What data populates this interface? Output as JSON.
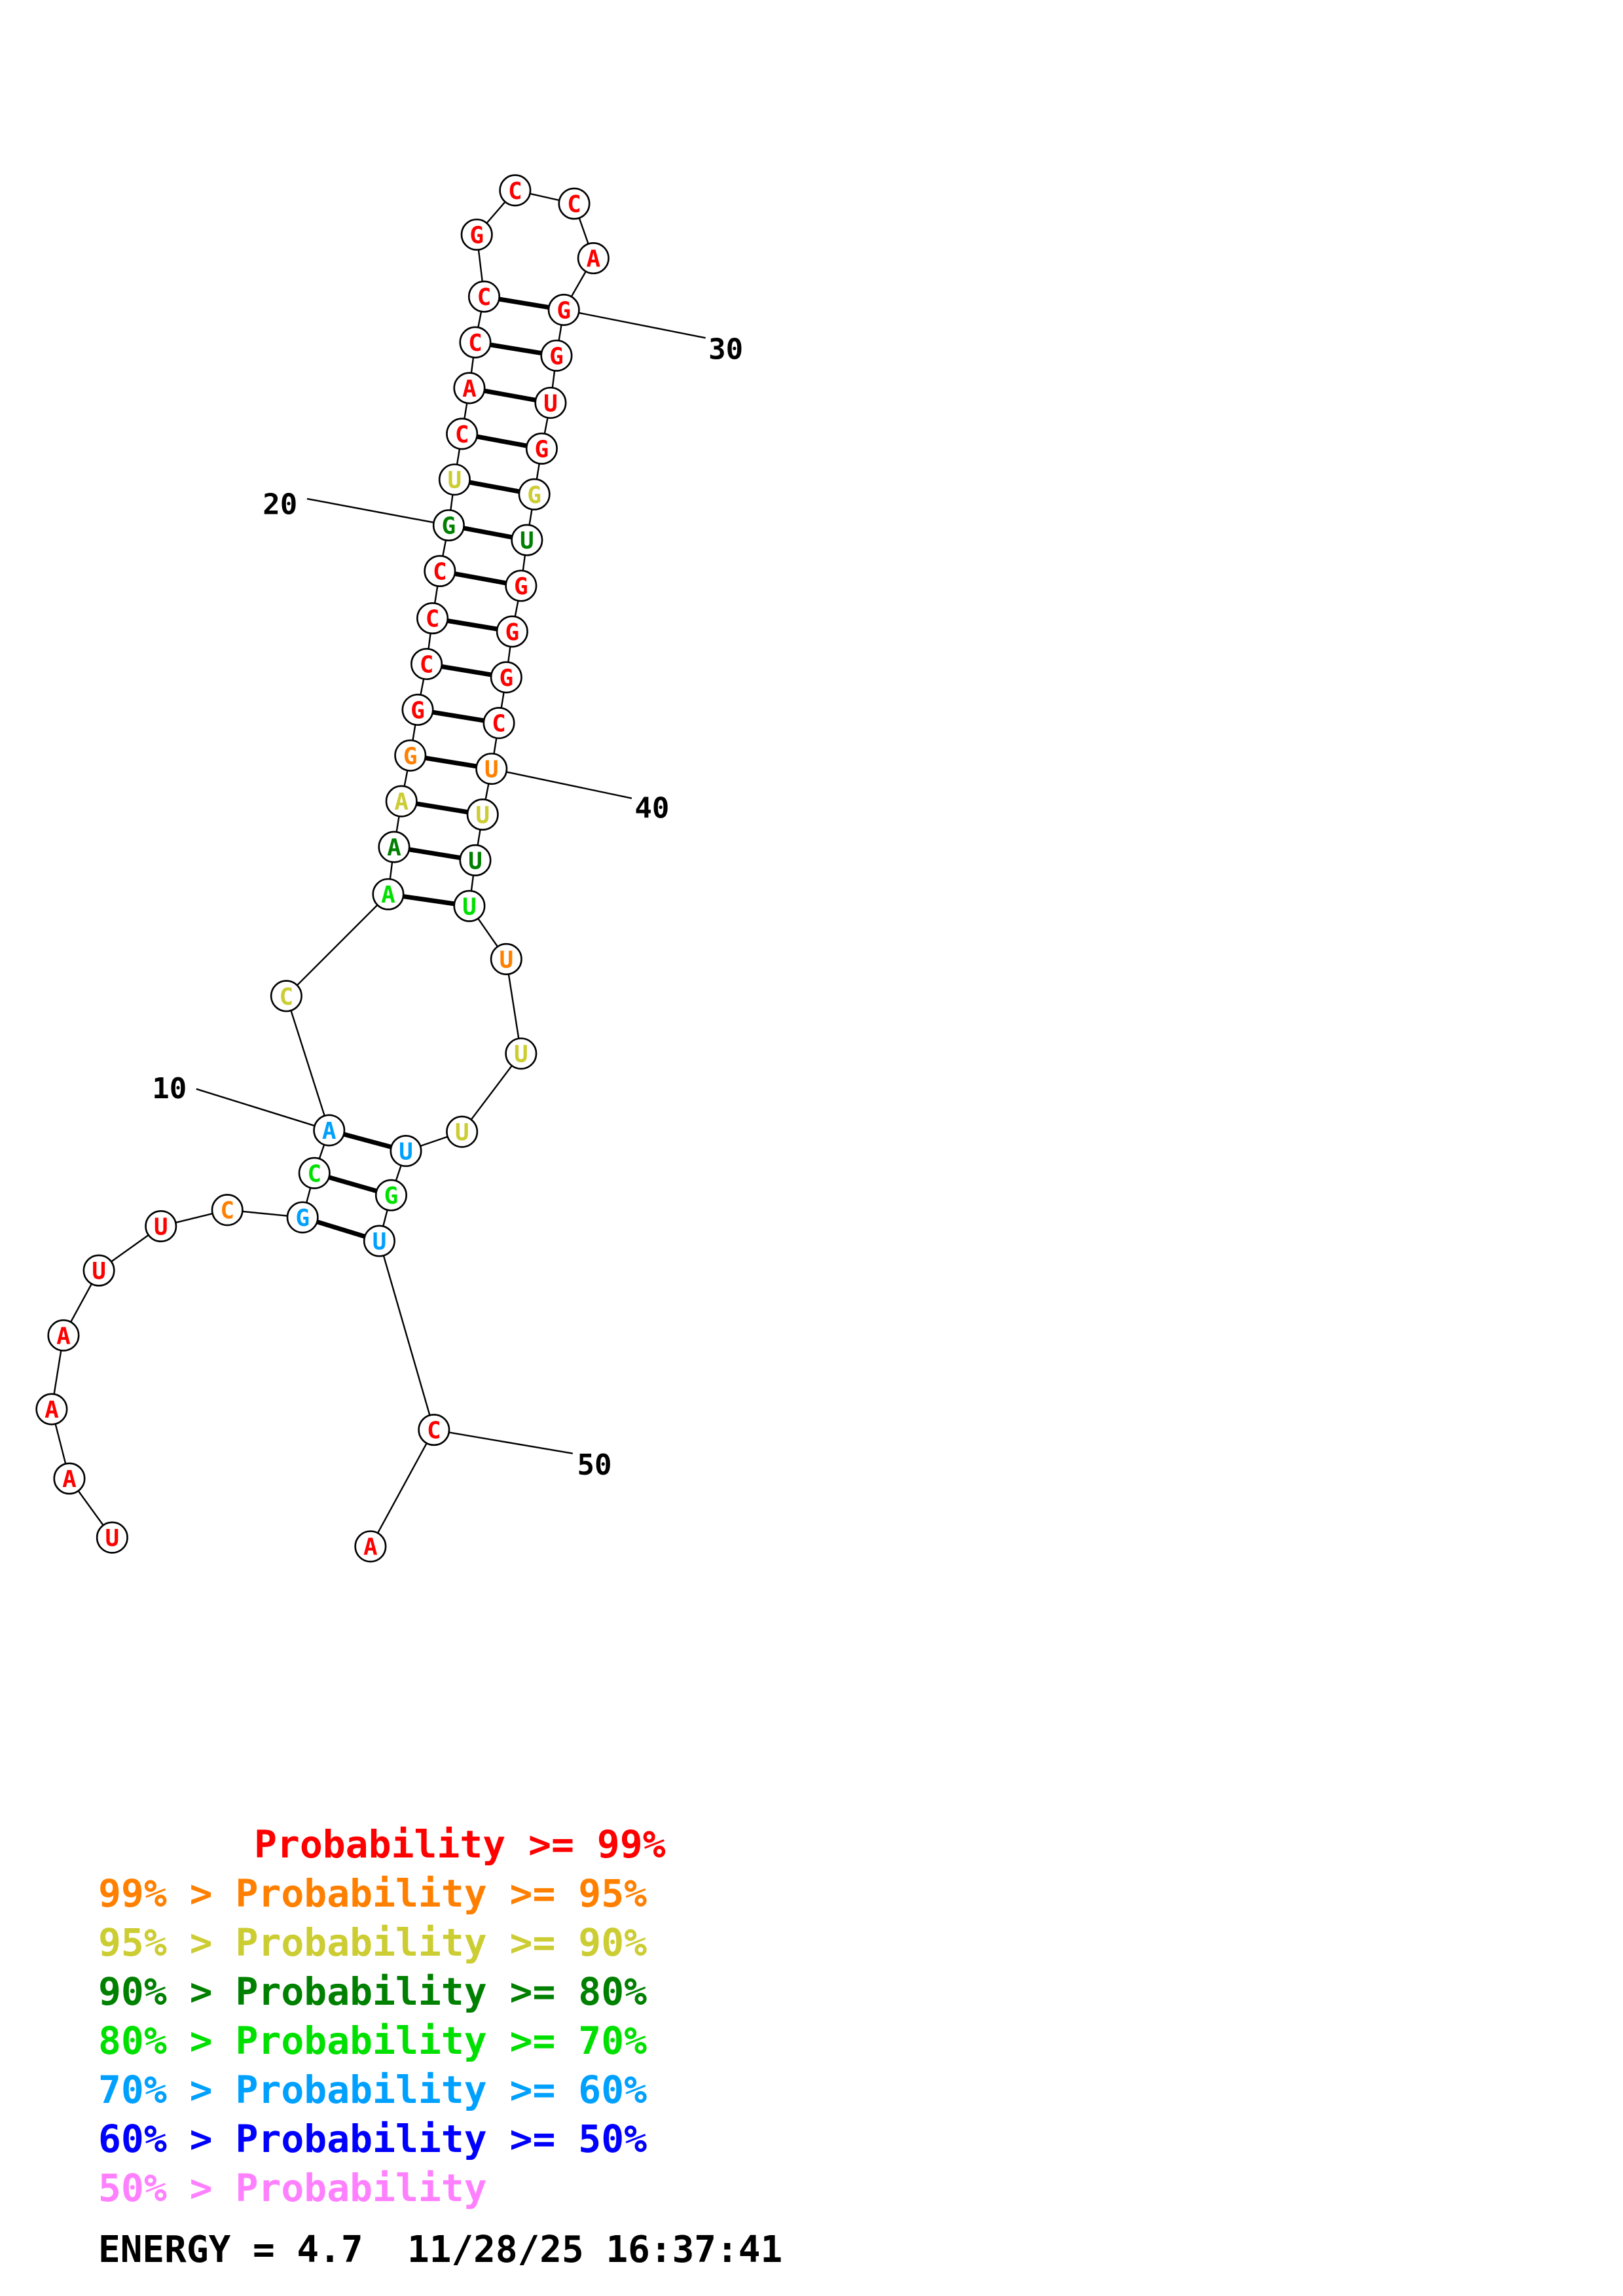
{
  "colors": {
    "red": "#ff0000",
    "orange": "#ff8000",
    "yellow": "#cccc33",
    "darkgreen": "#008000",
    "green": "#00e000",
    "cyan": "#00a0ff",
    "blue": "#0000ff",
    "pink": "#ff80ff"
  },
  "nucleotides": [
    {
      "n": 1,
      "base": "U",
      "color": "red"
    },
    {
      "n": 2,
      "base": "A",
      "color": "red"
    },
    {
      "n": 3,
      "base": "A",
      "color": "red"
    },
    {
      "n": 4,
      "base": "A",
      "color": "red"
    },
    {
      "n": 5,
      "base": "U",
      "color": "red"
    },
    {
      "n": 6,
      "base": "U",
      "color": "red"
    },
    {
      "n": 7,
      "base": "C",
      "color": "orange"
    },
    {
      "n": 8,
      "base": "G",
      "color": "cyan"
    },
    {
      "n": 9,
      "base": "C",
      "color": "green"
    },
    {
      "n": 10,
      "base": "A",
      "color": "cyan"
    },
    {
      "n": 11,
      "base": "C",
      "color": "yellow"
    },
    {
      "n": 12,
      "base": "A",
      "color": "green"
    },
    {
      "n": 13,
      "base": "A",
      "color": "darkgreen"
    },
    {
      "n": 14,
      "base": "A",
      "color": "yellow"
    },
    {
      "n": 15,
      "base": "G",
      "color": "orange"
    },
    {
      "n": 16,
      "base": "G",
      "color": "red"
    },
    {
      "n": 17,
      "base": "C",
      "color": "red"
    },
    {
      "n": 18,
      "base": "C",
      "color": "red"
    },
    {
      "n": 19,
      "base": "C",
      "color": "red"
    },
    {
      "n": 20,
      "base": "G",
      "color": "darkgreen"
    },
    {
      "n": 21,
      "base": "U",
      "color": "yellow"
    },
    {
      "n": 22,
      "base": "C",
      "color": "red"
    },
    {
      "n": 23,
      "base": "A",
      "color": "red"
    },
    {
      "n": 24,
      "base": "C",
      "color": "red"
    },
    {
      "n": 25,
      "base": "C",
      "color": "red"
    },
    {
      "n": 26,
      "base": "G",
      "color": "red"
    },
    {
      "n": 27,
      "base": "C",
      "color": "red"
    },
    {
      "n": 28,
      "base": "C",
      "color": "red"
    },
    {
      "n": 29,
      "base": "A",
      "color": "red"
    },
    {
      "n": 30,
      "base": "G",
      "color": "red"
    },
    {
      "n": 31,
      "base": "G",
      "color": "red"
    },
    {
      "n": 32,
      "base": "U",
      "color": "red"
    },
    {
      "n": 33,
      "base": "G",
      "color": "red"
    },
    {
      "n": 34,
      "base": "G",
      "color": "yellow"
    },
    {
      "n": 35,
      "base": "U",
      "color": "darkgreen"
    },
    {
      "n": 36,
      "base": "G",
      "color": "red"
    },
    {
      "n": 37,
      "base": "G",
      "color": "red"
    },
    {
      "n": 38,
      "base": "G",
      "color": "red"
    },
    {
      "n": 39,
      "base": "C",
      "color": "red"
    },
    {
      "n": 40,
      "base": "U",
      "color": "orange"
    },
    {
      "n": 41,
      "base": "U",
      "color": "yellow"
    },
    {
      "n": 42,
      "base": "U",
      "color": "darkgreen"
    },
    {
      "n": 43,
      "base": "U",
      "color": "green"
    },
    {
      "n": 44,
      "base": "U",
      "color": "orange"
    },
    {
      "n": 45,
      "base": "U",
      "color": "yellow"
    },
    {
      "n": 46,
      "base": "U",
      "color": "yellow"
    },
    {
      "n": 47,
      "base": "U",
      "color": "cyan"
    },
    {
      "n": 48,
      "base": "G",
      "color": "green"
    },
    {
      "n": 49,
      "base": "U",
      "color": "cyan"
    },
    {
      "n": 50,
      "base": "C",
      "color": "red"
    },
    {
      "n": 51,
      "base": "A",
      "color": "red"
    }
  ],
  "base_pairs": [
    [
      8,
      49
    ],
    [
      9,
      48
    ],
    [
      10,
      47
    ],
    [
      12,
      43
    ],
    [
      13,
      42
    ],
    [
      14,
      41
    ],
    [
      15,
      40
    ],
    [
      16,
      39
    ],
    [
      17,
      38
    ],
    [
      18,
      37
    ],
    [
      19,
      36
    ],
    [
      20,
      35
    ],
    [
      21,
      34
    ],
    [
      22,
      33
    ],
    [
      23,
      32
    ],
    [
      24,
      31
    ],
    [
      25,
      30
    ]
  ],
  "position_labels": [
    "10",
    "20",
    "30",
    "40",
    "50"
  ],
  "legend": [
    {
      "prefix": "",
      "text": "Probability >= 99%",
      "color": "red"
    },
    {
      "prefix": "99% > ",
      "text": "Probability >= 95%",
      "color": "orange"
    },
    {
      "prefix": "95% > ",
      "text": "Probability >= 90%",
      "color": "yellow"
    },
    {
      "prefix": "90% > ",
      "text": "Probability >= 80%",
      "color": "darkgreen"
    },
    {
      "prefix": "80% > ",
      "text": "Probability >= 70%",
      "color": "green"
    },
    {
      "prefix": "70% > ",
      "text": "Probability >= 60%",
      "color": "cyan"
    },
    {
      "prefix": "60% > ",
      "text": "Probability >= 50%",
      "color": "blue"
    },
    {
      "prefix": "50% > ",
      "text": "Probability",
      "color": "pink"
    }
  ],
  "footer": "ENERGY = 4.7  11/28/25 16:37:41"
}
